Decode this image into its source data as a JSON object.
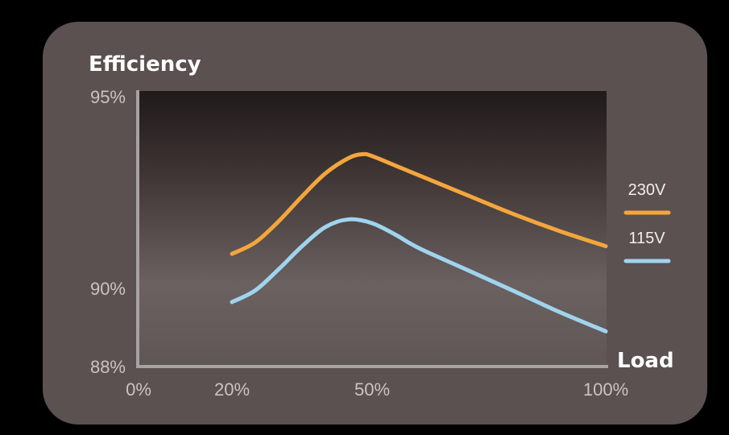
{
  "chart_data": {
    "type": "line",
    "title": "Efficiency",
    "xlabel": "Load",
    "ylabel": "Efficiency",
    "x_ticks": [
      "0%",
      "20%",
      "50%",
      "100%"
    ],
    "x_tick_values": [
      0,
      20,
      50,
      100
    ],
    "y_ticks": [
      "95%",
      "90%",
      "88%"
    ],
    "y_tick_values": [
      95,
      90,
      88
    ],
    "series": [
      {
        "name": "230V",
        "color": "#f4a63c",
        "x": [
          20,
          25,
          30,
          35,
          40,
          45,
          48,
          50,
          55,
          60,
          70,
          80,
          90,
          100
        ],
        "y": [
          90.9,
          91.2,
          91.75,
          92.4,
          93.0,
          93.4,
          93.5,
          93.45,
          93.2,
          92.95,
          92.45,
          91.95,
          91.5,
          91.1
        ]
      },
      {
        "name": "115V",
        "color": "#9fd4ee",
        "x": [
          20,
          25,
          30,
          35,
          40,
          45,
          50,
          55,
          60,
          70,
          80,
          90,
          100
        ],
        "y": [
          89.65,
          89.95,
          90.5,
          91.1,
          91.6,
          91.8,
          91.7,
          91.4,
          91.05,
          90.5,
          89.95,
          89.4,
          88.9
        ]
      }
    ],
    "legend": "right"
  }
}
